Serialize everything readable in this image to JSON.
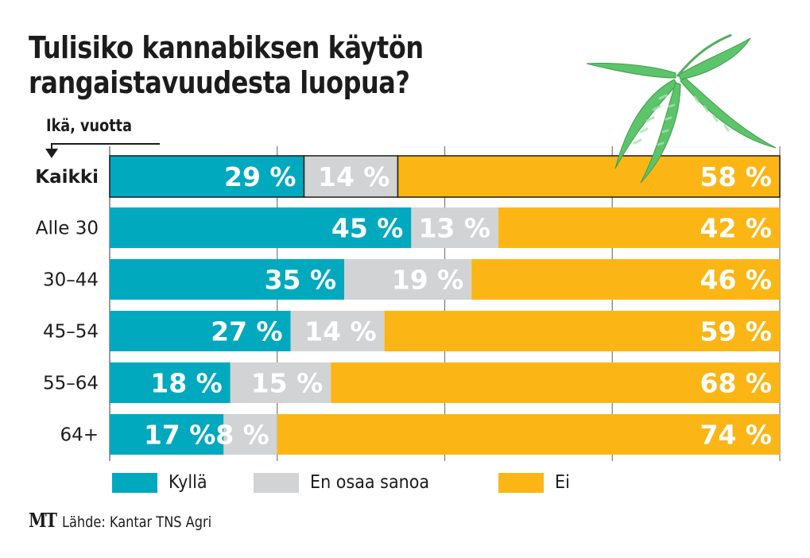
{
  "title_line1": "Tulisiko kannabiksen käytön",
  "title_line2": "rangaistavuudesta luopua?",
  "axis_caption": "Ikä, vuotta",
  "source": {
    "logo": "MT",
    "text": "Lähde: Kantar TNS Agri"
  },
  "illustration": "cannabis-leaf",
  "chart_data": {
    "type": "bar",
    "orientation": "horizontal",
    "stacked": true,
    "title": "Tulisiko kannabiksen käytön rangaistavuudesta luopua?",
    "ylabel": "Ikä, vuotta",
    "xlabel": "",
    "xlim": [
      0,
      100
    ],
    "unit": "%",
    "grid": true,
    "gridlines_at": [
      25,
      50,
      75
    ],
    "legend_position": "bottom",
    "categories": [
      "Kaikki",
      "Alle 30",
      "30–44",
      "45–54",
      "55–64",
      "64+"
    ],
    "highlight_category": "Kaikki",
    "series": [
      {
        "name": "Kyllä",
        "color": "#00a9be",
        "values": [
          29,
          45,
          35,
          27,
          18,
          17
        ]
      },
      {
        "name": "En osaa sanoa",
        "color": "#d1d3d4",
        "values": [
          14,
          13,
          19,
          14,
          15,
          8
        ]
      },
      {
        "name": "Ei",
        "color": "#fbb615",
        "values": [
          58,
          42,
          46,
          59,
          68,
          74
        ]
      }
    ],
    "value_label_suffix": " %"
  }
}
